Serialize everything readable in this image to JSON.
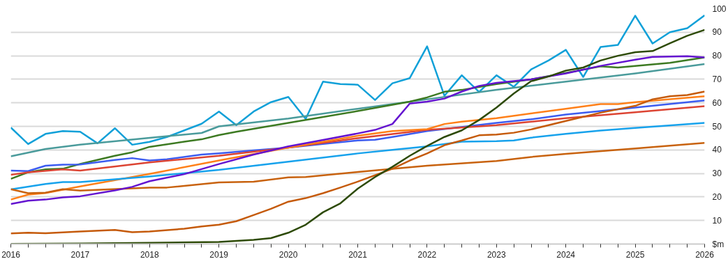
{
  "chart_data": {
    "type": "line",
    "grid": "y",
    "xlim": [
      2016,
      2026
    ],
    "ylim": [
      0,
      100
    ],
    "xticks": [
      2016,
      {
        "value": 2016.25,
        "label": null
      },
      {
        "value": 2016.5,
        "label": null
      },
      {
        "value": 2016.75,
        "label": null
      },
      2017,
      {
        "value": 2017.25,
        "label": null
      },
      {
        "value": 2017.5,
        "label": null
      },
      {
        "value": 2017.75,
        "label": null
      },
      2018,
      {
        "value": 2018.25,
        "label": null
      },
      {
        "value": 2018.5,
        "label": null
      },
      {
        "value": 2018.75,
        "label": null
      },
      2019,
      {
        "value": 2019.25,
        "label": null
      },
      {
        "value": 2019.5,
        "label": null
      },
      {
        "value": 2019.75,
        "label": null
      },
      2020,
      {
        "value": 2020.25,
        "label": null
      },
      {
        "value": 2020.5,
        "label": null
      },
      {
        "value": 2020.75,
        "label": null
      },
      2021,
      {
        "value": 2021.25,
        "label": null
      },
      {
        "value": 2021.5,
        "label": null
      },
      {
        "value": 2021.75,
        "label": null
      },
      2022,
      {
        "value": 2022.25,
        "label": null
      },
      {
        "value": 2022.5,
        "label": null
      },
      {
        "value": 2022.75,
        "label": null
      },
      2023,
      {
        "value": 2023.25,
        "label": null
      },
      {
        "value": 2023.5,
        "label": null
      },
      {
        "value": 2023.75,
        "label": null
      },
      2024,
      {
        "value": 2024.25,
        "label": null
      },
      {
        "value": 2024.5,
        "label": null
      },
      {
        "value": 2024.75,
        "label": null
      },
      2025,
      {
        "value": 2025.25,
        "label": null
      },
      {
        "value": 2025.5,
        "label": null
      },
      {
        "value": 2025.75,
        "label": null
      },
      2026
    ],
    "yticks": [
      {
        "value": 0,
        "label": "$m"
      },
      10,
      20,
      30,
      40,
      50,
      60,
      70,
      80,
      90,
      100
    ],
    "series": [
      {
        "color": "#10a0d8",
        "x": [
          2016,
          2016.25,
          2016.5,
          2016.75,
          2017,
          2017.25,
          2017.5,
          2017.75,
          2018,
          2018.25,
          2018.5,
          2018.75,
          2019,
          2019.25,
          2019.5,
          2019.75,
          2020,
          2020.25,
          2020.5,
          2020.75,
          2021,
          2021.25,
          2021.5,
          2021.75,
          2022,
          2022.25,
          2022.5,
          2022.75,
          2023,
          2023.25,
          2023.5,
          2023.75,
          2024,
          2024.25,
          2024.5,
          2024.75,
          2025,
          2025.25,
          2025.5,
          2025.75,
          2026
        ],
        "values": [
          49.5,
          42.5,
          46.8,
          48,
          47.7,
          42.8,
          49.2,
          42.2,
          43.4,
          45.5,
          48.3,
          51.1,
          56.3,
          50.5,
          56.3,
          60.3,
          62.5,
          53.2,
          69,
          68,
          67.7,
          61.2,
          68.3,
          70.5,
          84,
          63,
          71.7,
          64.6,
          71.7,
          66.8,
          74.2,
          78,
          82.5,
          71,
          83.7,
          84.6,
          97,
          85.2,
          90,
          91.7,
          97.2
        ]
      },
      {
        "color": "#4a9b9b",
        "x": [
          2016,
          2016.5,
          2017,
          2018,
          2018.75,
          2019,
          2020,
          2021,
          2022,
          2023,
          2024,
          2025,
          2026
        ],
        "values": [
          37.3,
          40.4,
          42.2,
          45.1,
          47.2,
          50,
          53.3,
          57.5,
          61.5,
          65.5,
          69,
          72.5,
          76.5
        ]
      },
      {
        "color": "#3d7a22",
        "x": [
          2016,
          2016.25,
          2016.5,
          2016.75,
          2017,
          2017.5,
          2017.75,
          2018,
          2018.5,
          2018.75,
          2019,
          2019.25,
          2020,
          2021,
          2021.75,
          2022,
          2022.25,
          2022.5,
          2023,
          2023.5,
          2024,
          2024.5,
          2024.75,
          2025,
          2025.5,
          2026
        ],
        "values": [
          27.7,
          30.5,
          31.7,
          32,
          34,
          37.5,
          39,
          41.3,
          43.5,
          44.5,
          46.3,
          47.7,
          51.5,
          56.5,
          60.5,
          62.3,
          64.7,
          65.5,
          68,
          70,
          72.7,
          75.5,
          75,
          75.7,
          77,
          79.3
        ]
      },
      {
        "color": "#3c5cf0",
        "x": [
          2016,
          2016.25,
          2016.5,
          2016.75,
          2017,
          2017.5,
          2017.75,
          2018,
          2018.25,
          2018.75,
          2019,
          2019.5,
          2020,
          2020.5,
          2021,
          2021.25,
          2021.5,
          2022,
          2023,
          2023.5,
          2024,
          2025,
          2026
        ],
        "values": [
          31.2,
          31,
          33.3,
          33.7,
          33.8,
          35.7,
          36.5,
          35.5,
          36,
          38,
          38.5,
          39.8,
          41,
          42.5,
          44,
          44.3,
          45.5,
          48,
          51.5,
          53,
          55,
          58,
          61
        ]
      },
      {
        "color": "#dc4433",
        "x": [
          2016,
          2016.25,
          2016.75,
          2017,
          2018,
          2019,
          2020,
          2021,
          2022,
          2022.75,
          2023,
          2024,
          2025,
          2026
        ],
        "values": [
          29.4,
          30.5,
          31.7,
          31.2,
          34.7,
          37.5,
          41,
          45,
          48.5,
          50,
          50.5,
          53.5,
          56,
          58.6
        ]
      },
      {
        "color": "#ff8019",
        "x": [
          2016,
          2016.25,
          2016.5,
          2017,
          2018,
          2019,
          2020,
          2021,
          2021.5,
          2022,
          2022.25,
          2022.5,
          2023,
          2024,
          2024.5,
          2024.75,
          2025,
          2026
        ],
        "values": [
          18.9,
          21,
          21.7,
          24.5,
          29.8,
          35.5,
          41,
          46,
          48,
          48.8,
          51,
          52,
          53.5,
          57.5,
          59.5,
          59.5,
          60.3,
          62.8
        ]
      },
      {
        "color": "#17a2ec",
        "x": [
          2016,
          2016.5,
          2016.75,
          2017,
          2018,
          2019,
          2020,
          2021,
          2021.5,
          2022,
          2022.5,
          2023,
          2023.25,
          2023.5,
          2024,
          2024.5,
          2025,
          2026
        ],
        "values": [
          23.2,
          25.5,
          26.3,
          26.3,
          28.7,
          31.5,
          35,
          38.5,
          40,
          41.5,
          43.5,
          43.7,
          44,
          45.2,
          46.8,
          48.2,
          49.3,
          51.5
        ]
      },
      {
        "color": "#c8620e",
        "x": [
          2016,
          2016.25,
          2016.5,
          2016.75,
          2017,
          2018,
          2018.25,
          2019,
          2019.5,
          2020,
          2020.25,
          2021,
          2022,
          2023,
          2023.5,
          2024,
          2025,
          2026
        ],
        "values": [
          23.3,
          21.6,
          21.8,
          23.3,
          22.7,
          24,
          24,
          26.2,
          26.5,
          28.3,
          28.5,
          30.6,
          33.3,
          35.3,
          37,
          38.3,
          40.6,
          43
        ]
      },
      {
        "color": "#6414d0",
        "x": [
          2016,
          2016.25,
          2016.5,
          2016.75,
          2017,
          2017.5,
          2017.75,
          2018,
          2018.5,
          2019,
          2019.5,
          2020,
          2020.5,
          2021,
          2021.25,
          2021.5,
          2021.75,
          2022,
          2022.25,
          2022.5,
          2022.75,
          2023,
          2023.5,
          2024,
          2024.5,
          2025,
          2025.25,
          2025.75,
          2026
        ],
        "values": [
          17,
          18.4,
          18.9,
          19.8,
          20.3,
          22.8,
          24.3,
          26.7,
          29.7,
          34,
          38,
          41.5,
          44.2,
          47,
          48.5,
          51,
          59.7,
          60.5,
          61.8,
          64.8,
          67.2,
          68.5,
          70,
          72.5,
          75.7,
          78.3,
          79.5,
          79.8,
          79.3
        ]
      },
      {
        "color": "#c55a0a",
        "x": [
          2016,
          2016.25,
          2016.5,
          2017,
          2017.5,
          2017.75,
          2018,
          2018.5,
          2018.75,
          2019,
          2019.25,
          2019.5,
          2019.75,
          2020,
          2020.25,
          2020.5,
          2020.75,
          2021,
          2021.5,
          2021.75,
          2022,
          2022.25,
          2022.5,
          2022.75,
          2023,
          2023.25,
          2023.5,
          2024,
          2024.5,
          2025,
          2025.25,
          2025.5,
          2025.75,
          2026
        ],
        "values": [
          4.5,
          4.8,
          4.6,
          5.3,
          6,
          5,
          5.3,
          6.5,
          7.5,
          8.2,
          9.7,
          12.3,
          15,
          18,
          19.5,
          21.6,
          24,
          26.5,
          32,
          35.5,
          38.5,
          42,
          44,
          46.2,
          46.5,
          47.3,
          48.7,
          52.3,
          55.8,
          58.7,
          61.5,
          62.8,
          63.3,
          64.8
        ]
      },
      {
        "color": "#2d4a06",
        "x": [
          2016,
          2017,
          2018,
          2019,
          2019.5,
          2019.75,
          2020,
          2020.25,
          2020.5,
          2020.75,
          2021,
          2021.25,
          2021.5,
          2021.75,
          2022,
          2022.25,
          2022.5,
          2022.75,
          2023,
          2023.25,
          2023.5,
          2023.75,
          2024,
          2024.25,
          2024.5,
          2024.75,
          2025,
          2025.25,
          2025.5,
          2025.75,
          2026
        ],
        "values": [
          0.1,
          0.2,
          0.5,
          0.9,
          1.8,
          2.5,
          4.8,
          8.2,
          13.5,
          17.3,
          23.5,
          28.5,
          32.8,
          37.5,
          41.7,
          45.5,
          48.3,
          52.7,
          58,
          64,
          69.2,
          71.2,
          73.7,
          75,
          78,
          80,
          81.5,
          82,
          85.3,
          88.5,
          91
        ]
      }
    ]
  }
}
